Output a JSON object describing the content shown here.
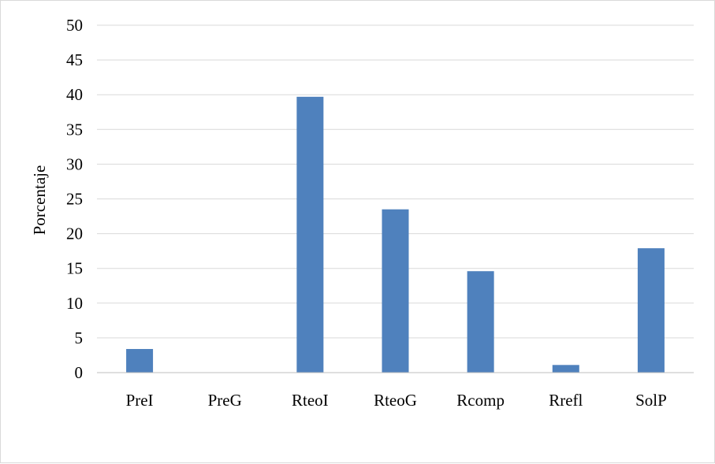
{
  "chart_data": {
    "type": "bar",
    "title": "",
    "xlabel": "",
    "ylabel": "Porcentaje",
    "categories": [
      "PreI",
      "PreG",
      "RteoI",
      "RteoG",
      "Rcomp",
      "Rrefl",
      "SolP"
    ],
    "values": [
      3.4,
      0,
      39.7,
      23.5,
      14.6,
      1.1,
      17.9
    ],
    "ylim": [
      0,
      50
    ],
    "yticks": [
      "0",
      "5",
      "10",
      "15",
      "20",
      "25",
      "30",
      "35",
      "40",
      "45",
      "50"
    ],
    "grid": true,
    "legend": "none",
    "colors": {
      "bar": "#4f81bd",
      "grid": "#d9d9d9",
      "axis": "#bfbfbf",
      "border": "#d9d9d9"
    }
  }
}
